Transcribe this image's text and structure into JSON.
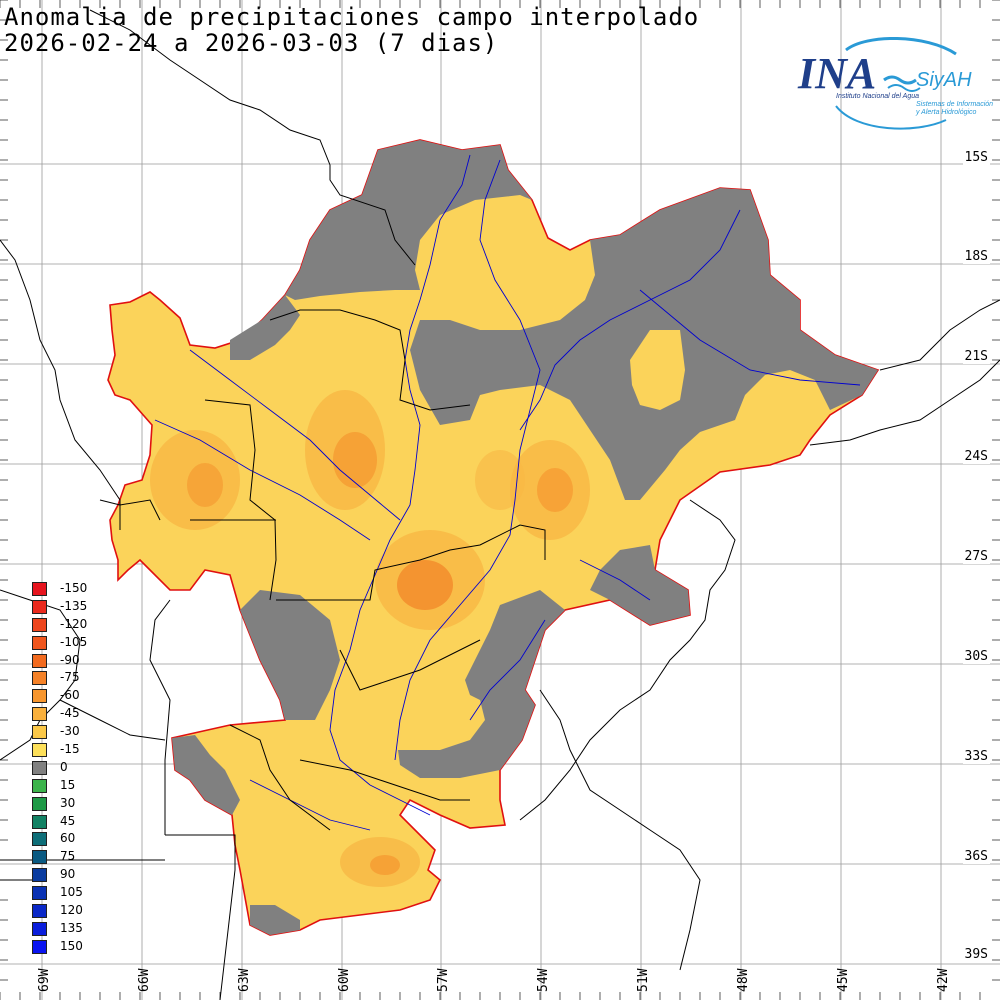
{
  "title_line1": "Anomalia de precipitaciones campo interpolado",
  "title_line2": "2026-02-24 a 2026-03-03 (7 dias)",
  "logo": {
    "text": "INA",
    "subtitle": "SiyAH",
    "line1": "Instituto Nacional del Agua",
    "line2": "Sistemas de Información",
    "line3": "y Alerta Hidrológico"
  },
  "lat_labels": [
    "15S",
    "18S",
    "21S",
    "24S",
    "27S",
    "30S",
    "33S",
    "36S",
    "39S"
  ],
  "lon_labels": [
    "69W",
    "66W",
    "63W",
    "60W",
    "57W",
    "54W",
    "51W",
    "48W",
    "45W",
    "42W"
  ],
  "legend": [
    {
      "label": "-150",
      "color": "#e6141e"
    },
    {
      "label": "-135",
      "color": "#ea2a1e"
    },
    {
      "label": "-120",
      "color": "#ee461e"
    },
    {
      "label": "-105",
      "color": "#f0561e"
    },
    {
      "label": "-90",
      "color": "#f26a1e"
    },
    {
      "label": "-75",
      "color": "#f58228"
    },
    {
      "label": "-60",
      "color": "#f7962e"
    },
    {
      "label": "-45",
      "color": "#f9b03c"
    },
    {
      "label": "-30",
      "color": "#fbc848"
    },
    {
      "label": "-15",
      "color": "#fde05a"
    },
    {
      "label": "0",
      "color": "#808080"
    },
    {
      "label": "15",
      "color": "#3cb44b"
    },
    {
      "label": "30",
      "color": "#1e9a46"
    },
    {
      "label": "45",
      "color": "#128264"
    },
    {
      "label": "60",
      "color": "#0e6e78"
    },
    {
      "label": "75",
      "color": "#0a5a82"
    },
    {
      "label": "90",
      "color": "#0a3ca0"
    },
    {
      "label": "105",
      "color": "#0a32b4"
    },
    {
      "label": "120",
      "color": "#0a28c8"
    },
    {
      "label": "135",
      "color": "#0a1edc"
    },
    {
      "label": "150",
      "color": "#0a14f0"
    }
  ]
}
